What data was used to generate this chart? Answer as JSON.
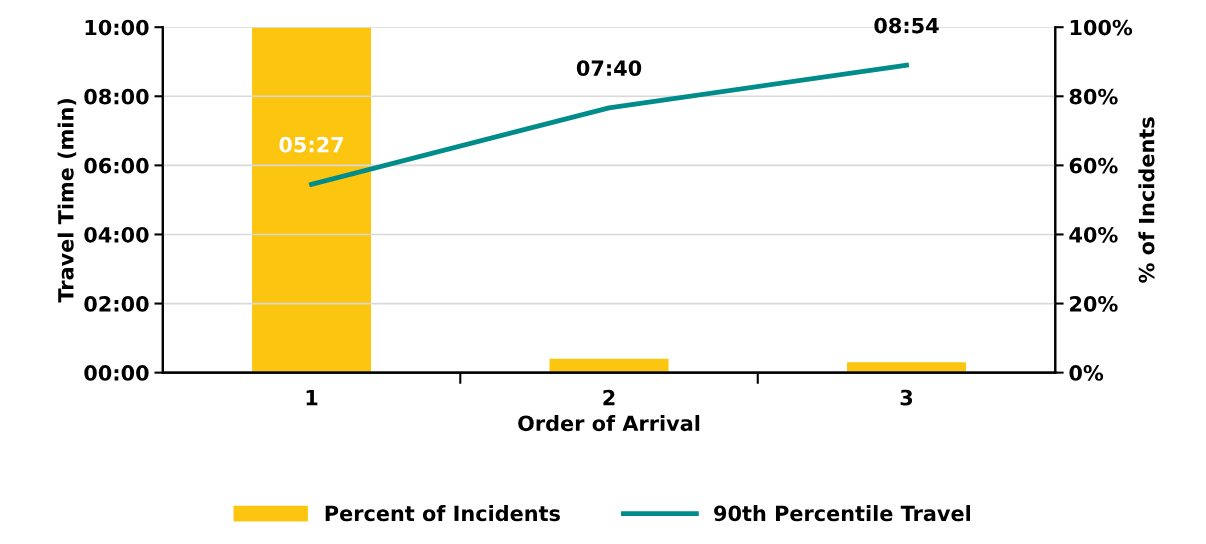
{
  "chart_data": {
    "type": "bar",
    "xlabel": "Order of Arrival",
    "ylabel": "Travel Time (min)",
    "y2label": "% of Incidents",
    "categories": [
      "1",
      "2",
      "3"
    ],
    "series": [
      {
        "name": "Percent of Incidents",
        "axis": "y2",
        "color": "#fcc50f",
        "values": [
          100,
          4,
          3
        ]
      },
      {
        "name": "90th Percentile Travel",
        "type": "line",
        "axis": "y",
        "color": "#008c8a",
        "values": [
          5.45,
          7.6667,
          8.9
        ],
        "value_labels": [
          "05:27",
          "07:40",
          "08:54"
        ]
      }
    ],
    "ylim": [
      0,
      10
    ],
    "yticks": [
      {
        "value": 0,
        "label": "00:00"
      },
      {
        "value": 2,
        "label": "02:00"
      },
      {
        "value": 4,
        "label": "04:00"
      },
      {
        "value": 6,
        "label": "06:00"
      },
      {
        "value": 8,
        "label": "08:00"
      },
      {
        "value": 10,
        "label": "10:00"
      }
    ],
    "y2lim": [
      0,
      100
    ],
    "y2ticks": [
      {
        "value": 0,
        "label": "0%"
      },
      {
        "value": 20,
        "label": "20%"
      },
      {
        "value": 40,
        "label": "40%"
      },
      {
        "value": 60,
        "label": "60%"
      },
      {
        "value": 80,
        "label": "80%"
      },
      {
        "value": 100,
        "label": "100%"
      }
    ],
    "grid": "y",
    "legend": "bottom",
    "marker": "none",
    "line_style": "solid"
  }
}
